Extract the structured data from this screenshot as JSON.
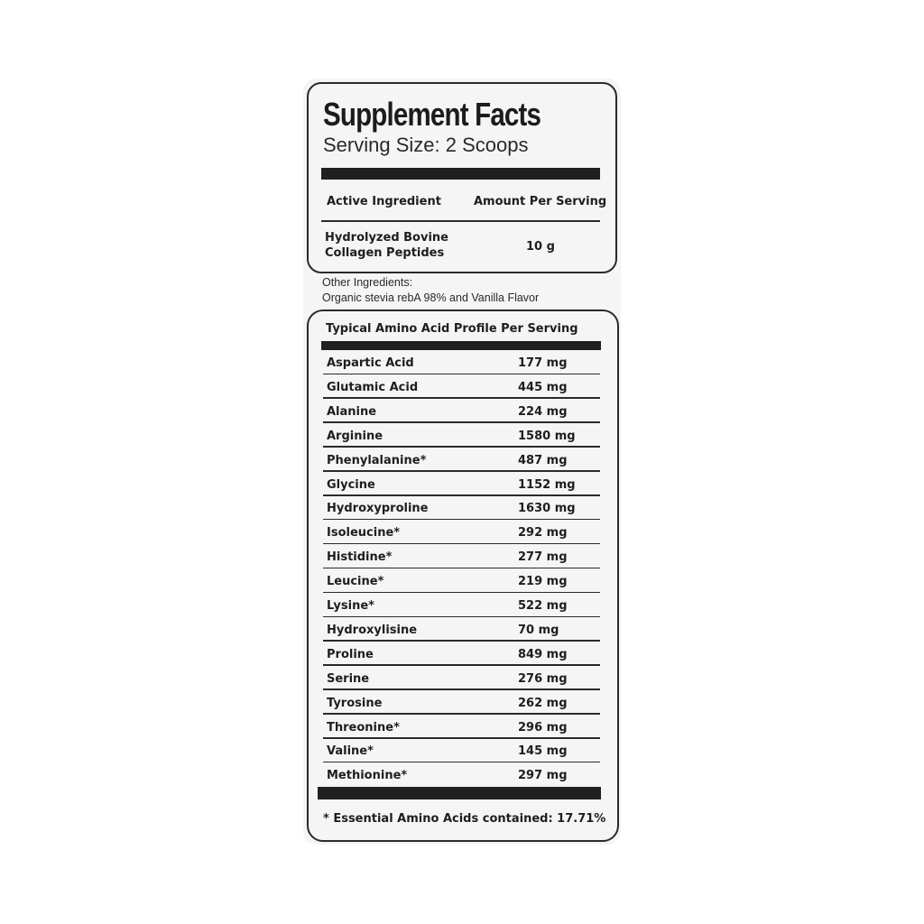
{
  "title": "Supplement Facts",
  "serving_size": "Serving Size: 2 Scoops",
  "active_table": {
    "headers": [
      "Active Ingredient",
      "Amount Per Serving"
    ],
    "rows": [
      {
        "name_line1": "Hydrolyzed Bovine",
        "name_line2": "Collagen Peptides",
        "amount": "10 g"
      }
    ]
  },
  "other_ingredients": {
    "label": "Other Ingredients:",
    "text": "Organic stevia rebA 98% and Vanilla Flavor"
  },
  "amino_profile": {
    "heading": "Typical Amino Acid Profile Per Serving",
    "rows": [
      {
        "name": "Aspartic Acid",
        "amount": "177 mg"
      },
      {
        "name": "Glutamic Acid",
        "amount": "445 mg"
      },
      {
        "name": "Alanine",
        "amount": "224 mg"
      },
      {
        "name": "Arginine",
        "amount": "1580 mg"
      },
      {
        "name": "Phenylalanine*",
        "amount": "487 mg"
      },
      {
        "name": "Glycine",
        "amount": "1152 mg"
      },
      {
        "name": "Hydroxyproline",
        "amount": "1630 mg"
      },
      {
        "name": "Isoleucine*",
        "amount": "292 mg"
      },
      {
        "name": "Histidine*",
        "amount": "277 mg"
      },
      {
        "name": "Leucine*",
        "amount": "219 mg"
      },
      {
        "name": "Lysine*",
        "amount": "522 mg"
      },
      {
        "name": "Hydroxylisine",
        "amount": "70 mg"
      },
      {
        "name": "Proline",
        "amount": "849 mg"
      },
      {
        "name": "Serine",
        "amount": "276 mg"
      },
      {
        "name": "Tyrosine",
        "amount": "262 mg"
      },
      {
        "name": "Threonine*",
        "amount": "296 mg"
      },
      {
        "name": "Valine*",
        "amount": "145 mg"
      },
      {
        "name": "Methionine*",
        "amount": "297 mg"
      }
    ],
    "footnote": "* Essential Amino Acids contained: 17.71%"
  }
}
